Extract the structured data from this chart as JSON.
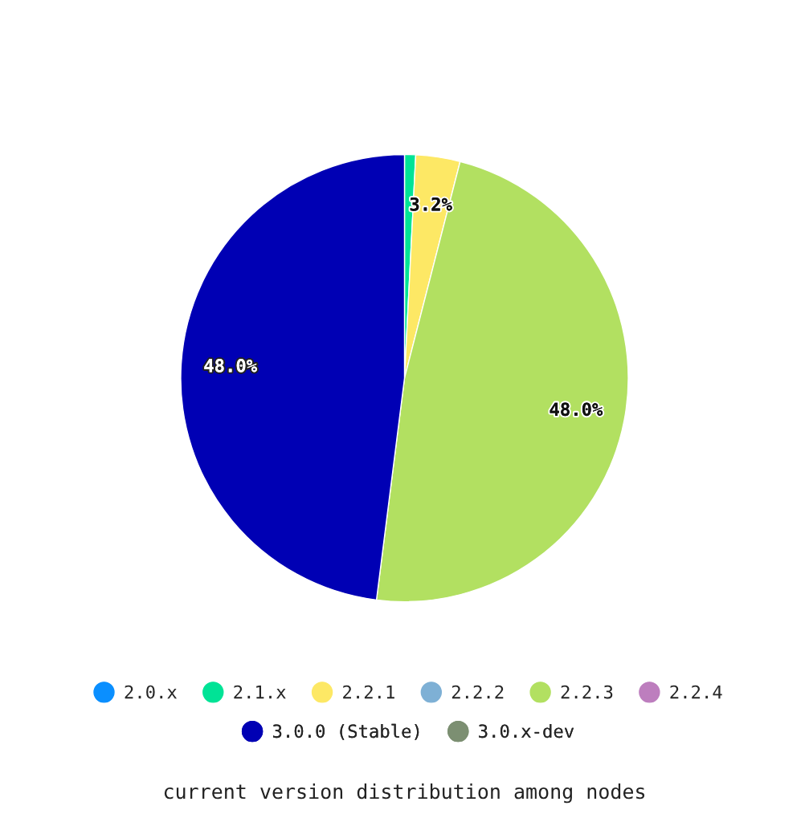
{
  "chart_data": {
    "type": "pie",
    "categories": [
      "2.0.x",
      "2.1.x",
      "2.2.1",
      "2.2.2",
      "2.2.3",
      "2.2.4",
      "3.0.0 (Stable)",
      "3.0.x-dev"
    ],
    "values": [
      0,
      0.8,
      3.2,
      0,
      48.0,
      0,
      48.0,
      0
    ],
    "colors": [
      "#0a8fff",
      "#00e396",
      "#fde865",
      "#7eb0d5",
      "#b2e061",
      "#bd7ebe",
      "#0000b4",
      "#7c8f72"
    ],
    "value_labels": [
      null,
      null,
      "3.2%",
      null,
      "48.0%",
      null,
      "48.0%",
      null
    ],
    "legend": "bottom",
    "annotations": [
      "current version distribution among nodes"
    ]
  }
}
